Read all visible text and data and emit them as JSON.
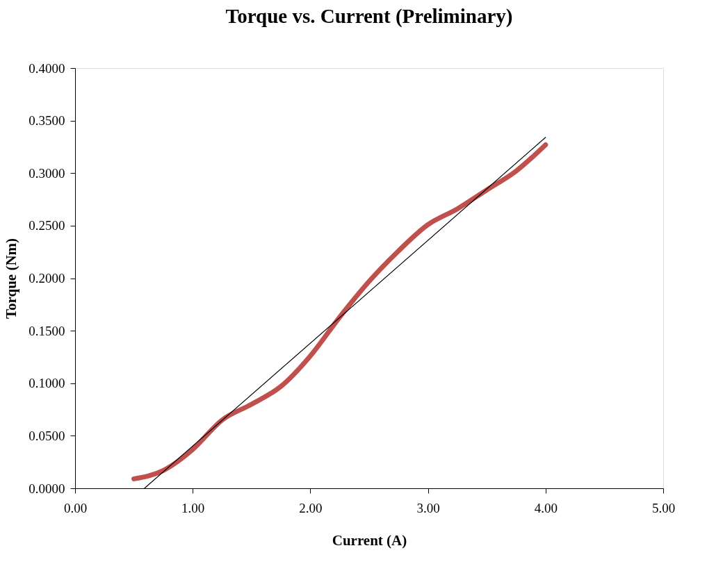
{
  "chart_data": {
    "type": "line",
    "title": "Torque vs. Current (Preliminary)",
    "xlabel": "Current (A)",
    "ylabel": "Torque (Nm)",
    "xlim": [
      0,
      5
    ],
    "xticks": [
      {
        "value": 0,
        "label": "0.00"
      },
      {
        "value": 1,
        "label": "1.00"
      },
      {
        "value": 2,
        "label": "2.00"
      },
      {
        "value": 3,
        "label": "3.00"
      },
      {
        "value": 4,
        "label": "4.00"
      },
      {
        "value": 5,
        "label": "5.00"
      }
    ],
    "ylim": [
      0,
      0.4
    ],
    "yticks": [
      {
        "value": 0,
        "label": "0.0000"
      },
      {
        "value": 0.05,
        "label": "0.0500"
      },
      {
        "value": 0.1,
        "label": "0.1000"
      },
      {
        "value": 0.15,
        "label": "0.1500"
      },
      {
        "value": 0.2,
        "label": "0.2000"
      },
      {
        "value": 0.25,
        "label": "0.2500"
      },
      {
        "value": 0.3,
        "label": "0.3000"
      },
      {
        "value": 0.35,
        "label": "0.3500"
      },
      {
        "value": 0.4,
        "label": "0.4000"
      }
    ],
    "grid": false,
    "marker": "none",
    "series": [
      {
        "color": "#c0504d",
        "x": [
          0.5,
          0.75,
          1.0,
          1.25,
          1.5,
          1.75,
          2.0,
          2.25,
          2.5,
          2.75,
          3.0,
          3.25,
          3.5,
          3.75,
          4.0
        ],
        "values": [
          0.009,
          0.017,
          0.037,
          0.065,
          0.08,
          0.097,
          0.126,
          0.163,
          0.197,
          0.226,
          0.251,
          0.266,
          0.284,
          0.302,
          0.327
        ]
      },
      {
        "type": "line",
        "color": "#000000",
        "x": [
          0.59,
          4.0
        ],
        "values": [
          0.0,
          0.334
        ]
      }
    ]
  }
}
